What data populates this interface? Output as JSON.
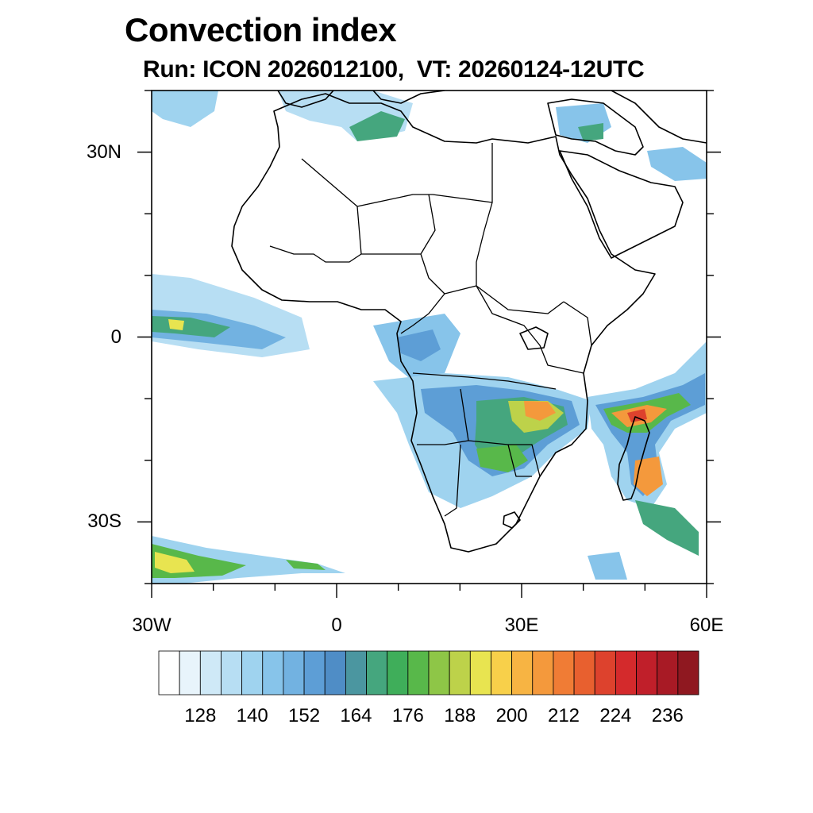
{
  "title": "Convection index",
  "subtitle": "Run: ICON 2026012100,  VT: 20260124-12UTC",
  "map": {
    "lon_range": [
      -30,
      60
    ],
    "lat_range": [
      -40,
      40
    ],
    "lat_ticks": [
      {
        "value": 30,
        "label": "30N"
      },
      {
        "value": 0,
        "label": "0"
      },
      {
        "value": -30,
        "label": "30S"
      }
    ],
    "lon_ticks": [
      {
        "value": -30,
        "label": "30W"
      },
      {
        "value": 0,
        "label": "0"
      },
      {
        "value": 30,
        "label": "30E"
      },
      {
        "value": 60,
        "label": "60E"
      }
    ],
    "minor_tick_step_deg": 10
  },
  "colorbar": {
    "label_values": [
      "128",
      "140",
      "152",
      "164",
      "176",
      "188",
      "200",
      "212",
      "224",
      "236"
    ],
    "colors": [
      "#ffffff",
      "#e8f4fb",
      "#cfe9f7",
      "#b7def3",
      "#9fd3ef",
      "#87c4ea",
      "#72b2e1",
      "#5d9ed6",
      "#4f8dc6",
      "#4b96a0",
      "#45a67e",
      "#3fae5a",
      "#58b84a",
      "#8ec647",
      "#bdd24a",
      "#e8e450",
      "#f8d04a",
      "#f7b443",
      "#f4993c",
      "#f07c35",
      "#e8602f",
      "#dd422d",
      "#d42a2c",
      "#c01f2a",
      "#a81a25",
      "#8f1820"
    ]
  }
}
